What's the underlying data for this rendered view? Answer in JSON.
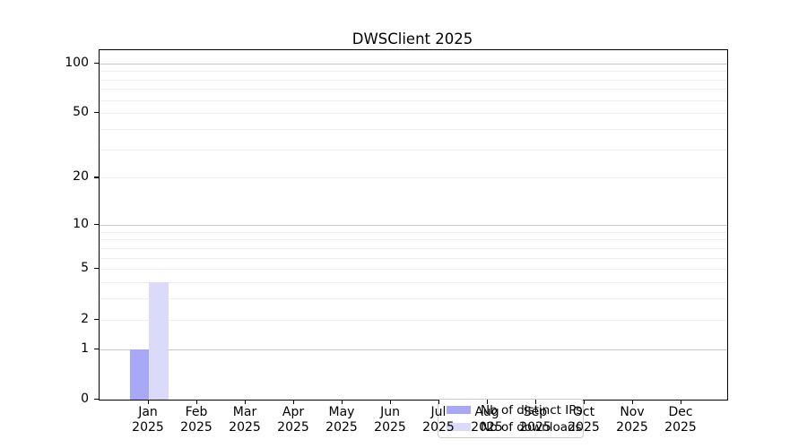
{
  "chart_data": {
    "type": "bar",
    "title": "DWSClient 2025",
    "categories": [
      "Jan",
      "Feb",
      "Mar",
      "Apr",
      "May",
      "Jun",
      "Jul",
      "Aug",
      "Sep",
      "Oct",
      "Nov",
      "Dec"
    ],
    "category_year": "2025",
    "series": [
      {
        "name": "Nb of distinct IPs",
        "color": "#a8a8f6",
        "values": [
          1,
          0,
          0,
          0,
          0,
          0,
          0,
          0,
          0,
          0,
          0,
          0
        ]
      },
      {
        "name": "Nb of downloads",
        "color": "#dbdbf9",
        "values": [
          4,
          0,
          0,
          0,
          0,
          0,
          0,
          0,
          0,
          0,
          0,
          0
        ]
      }
    ],
    "yscale": "log1p",
    "ylim": [
      0,
      120
    ],
    "yticks": [
      0,
      1,
      2,
      5,
      10,
      20,
      50,
      100
    ],
    "major_gridlines": [
      1,
      10,
      100
    ],
    "minor_gridlines": [
      2,
      3,
      4,
      5,
      6,
      7,
      8,
      9,
      20,
      30,
      40,
      50,
      60,
      70,
      80,
      90
    ],
    "grid": true,
    "legend_position": "lower center"
  },
  "colors": {
    "grid_major": "#c6c6c6",
    "grid_minor": "#ededed",
    "axis": "#000000",
    "legend_border": "#cccccc",
    "background": "#ffffff"
  }
}
